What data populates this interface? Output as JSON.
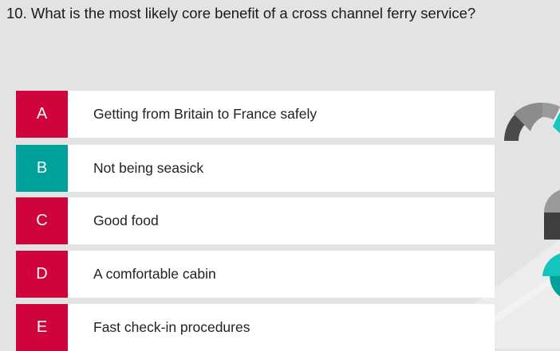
{
  "question": {
    "text": "10. What is the most likely core benefit of a cross channel ferry service?"
  },
  "options": [
    {
      "letter": "A",
      "text": "Getting from Britain to France safely",
      "color": "#d0043c"
    },
    {
      "letter": "B",
      "text": "Not being seasick",
      "color": "#00a19a"
    },
    {
      "letter": "C",
      "text": "Good food",
      "color": "#d0043c"
    },
    {
      "letter": "D",
      "text": "A comfortable cabin",
      "color": "#d0043c"
    },
    {
      "letter": "E",
      "text": "Fast check-in procedures",
      "color": "#d0043c"
    }
  ],
  "colors": {
    "background": "#e3e3e3",
    "accent_red": "#d0043c",
    "accent_teal": "#00a19a",
    "card": "#ffffff"
  }
}
